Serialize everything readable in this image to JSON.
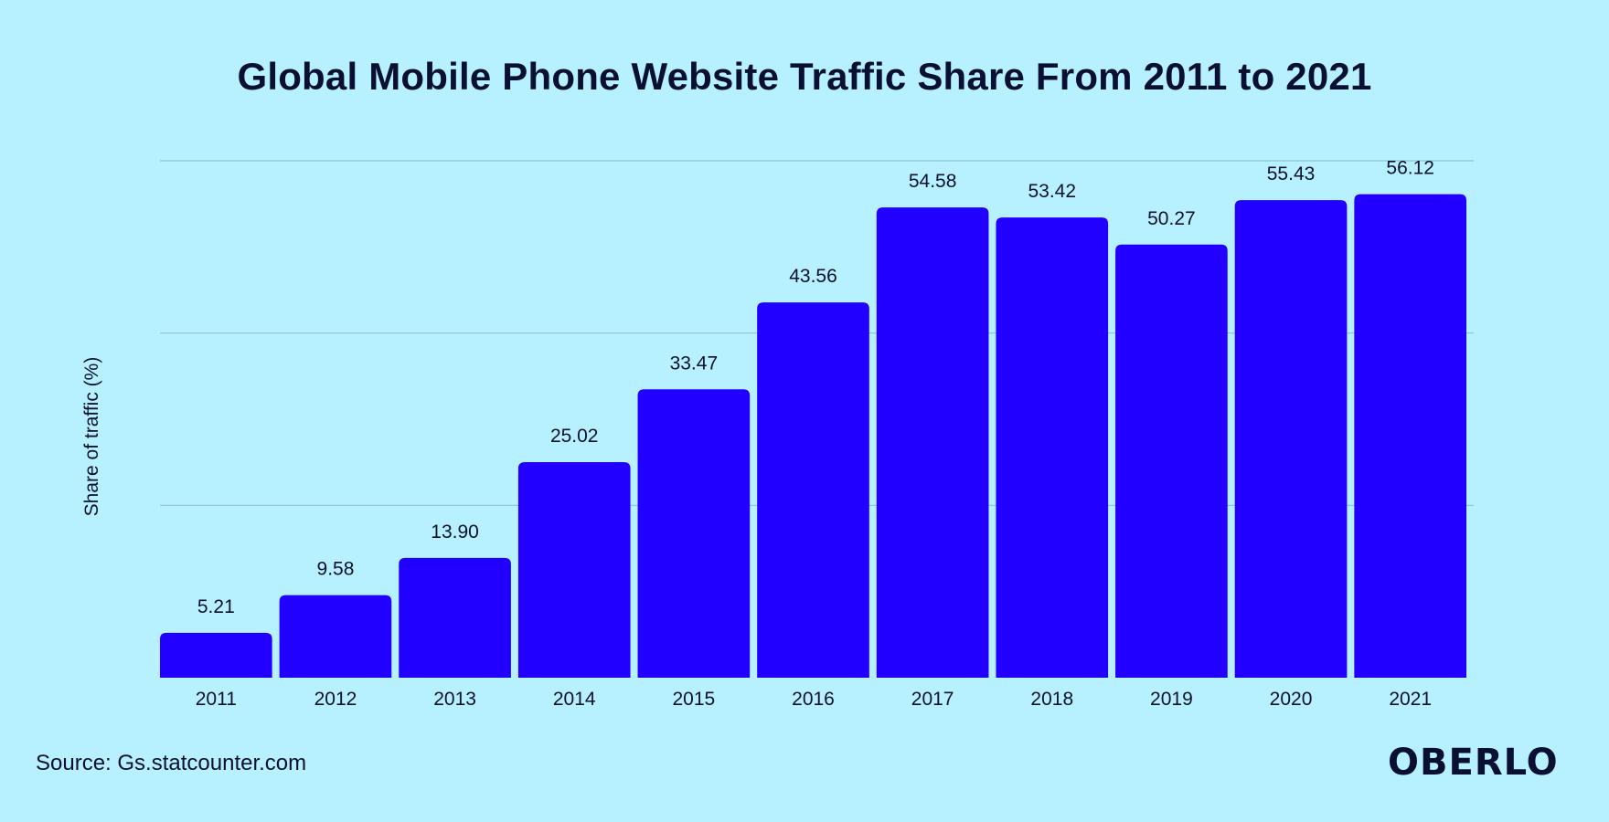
{
  "chart_data": {
    "type": "bar",
    "title": "Global Mobile Phone Website Traffic Share From 2011 to 2021",
    "ylabel": "Share of traffic (%)",
    "xlabel": "",
    "categories": [
      "2011",
      "2012",
      "2013",
      "2014",
      "2015",
      "2016",
      "2017",
      "2018",
      "2019",
      "2020",
      "2021"
    ],
    "values": [
      5.21,
      9.58,
      13.9,
      25.02,
      33.47,
      43.56,
      54.58,
      53.42,
      50.27,
      55.43,
      56.12
    ],
    "value_labels": [
      "5.21",
      "9.58",
      "13.90",
      "25.02",
      "33.47",
      "43.56",
      "54.58",
      "53.42",
      "50.27",
      "55.43",
      "56.12"
    ],
    "ylim": [
      0,
      60
    ],
    "gridlines": [
      20,
      40,
      60
    ],
    "grid": true,
    "legend": "none",
    "colors": {
      "bar": "#2200ff",
      "background": "#b7f0fe",
      "text": "#0a1033",
      "grid": "#8fc3d1"
    }
  },
  "footer": {
    "source": "Source: Gs.statcounter.com",
    "brand": "OBERLO"
  }
}
